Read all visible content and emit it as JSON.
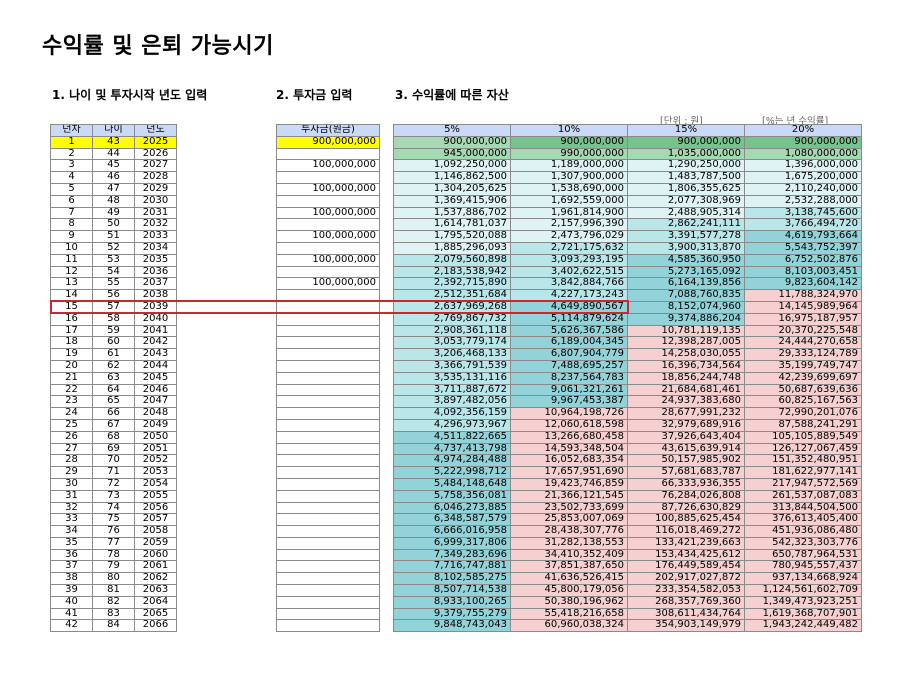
{
  "title": "수익률 및 은퇴 가능시기",
  "subtitles": [
    "1. 나이 및 투자시작 년도 입력",
    "2. 투자금 입력",
    "3. 수익률에 따른 자산"
  ],
  "notes": {
    "unit": "[단위 : 원]",
    "rate": "[%는 년 수익률]"
  },
  "left_headers": [
    "년차",
    "나이",
    "년도"
  ],
  "invest_header": "투자금(원금)",
  "rate_headers": [
    "5%",
    "10%",
    "15%",
    "20%"
  ],
  "colors": {
    "header": "#c9daf8",
    "highlight": "#ffff00",
    "green": "#76c48d",
    "teal": "#92d3d9",
    "pink": "#f6d0d0",
    "red_outline": "#c8282f"
  },
  "highlighted_row_year": "15",
  "rows": [
    {
      "n": "1",
      "age": "43",
      "year": "2025",
      "invest": "900,000,000",
      "v": [
        "900,000,000",
        "900,000,000",
        "900,000,000",
        "900,000,000"
      ]
    },
    {
      "n": "2",
      "age": "44",
      "year": "2026",
      "invest": "",
      "v": [
        "945,000,000",
        "990,000,000",
        "1,035,000,000",
        "1,080,000,000"
      ]
    },
    {
      "n": "3",
      "age": "45",
      "year": "2027",
      "invest": "100,000,000",
      "v": [
        "1,092,250,000",
        "1,189,000,000",
        "1,290,250,000",
        "1,396,000,000"
      ]
    },
    {
      "n": "4",
      "age": "46",
      "year": "2028",
      "invest": "",
      "v": [
        "1,146,862,500",
        "1,307,900,000",
        "1,483,787,500",
        "1,675,200,000"
      ]
    },
    {
      "n": "5",
      "age": "47",
      "year": "2029",
      "invest": "100,000,000",
      "v": [
        "1,304,205,625",
        "1,538,690,000",
        "1,806,355,625",
        "2,110,240,000"
      ]
    },
    {
      "n": "6",
      "age": "48",
      "year": "2030",
      "invest": "",
      "v": [
        "1,369,415,906",
        "1,692,559,000",
        "2,077,308,969",
        "2,532,288,000"
      ]
    },
    {
      "n": "7",
      "age": "49",
      "year": "2031",
      "invest": "100,000,000",
      "v": [
        "1,537,886,702",
        "1,961,814,900",
        "2,488,905,314",
        "3,138,745,600"
      ]
    },
    {
      "n": "8",
      "age": "50",
      "year": "2032",
      "invest": "",
      "v": [
        "1,614,781,037",
        "2,157,996,390",
        "2,862,241,111",
        "3,766,494,720"
      ]
    },
    {
      "n": "9",
      "age": "51",
      "year": "2033",
      "invest": "100,000,000",
      "v": [
        "1,795,520,088",
        "2,473,796,029",
        "3,391,577,278",
        "4,619,793,664"
      ]
    },
    {
      "n": "10",
      "age": "52",
      "year": "2034",
      "invest": "",
      "v": [
        "1,885,296,093",
        "2,721,175,632",
        "3,900,313,870",
        "5,543,752,397"
      ]
    },
    {
      "n": "11",
      "age": "53",
      "year": "2035",
      "invest": "100,000,000",
      "v": [
        "2,079,560,898",
        "3,093,293,195",
        "4,585,360,950",
        "6,752,502,876"
      ]
    },
    {
      "n": "12",
      "age": "54",
      "year": "2036",
      "invest": "",
      "v": [
        "2,183,538,942",
        "3,402,622,515",
        "5,273,165,092",
        "8,103,003,451"
      ]
    },
    {
      "n": "13",
      "age": "55",
      "year": "2037",
      "invest": "100,000,000",
      "v": [
        "2,392,715,890",
        "3,842,884,766",
        "6,164,139,856",
        "9,823,604,142"
      ]
    },
    {
      "n": "14",
      "age": "56",
      "year": "2038",
      "invest": "",
      "v": [
        "2,512,351,684",
        "4,227,173,243",
        "7,088,760,835",
        "11,788,324,970"
      ]
    },
    {
      "n": "15",
      "age": "57",
      "year": "2039",
      "invest": "",
      "v": [
        "2,637,969,268",
        "4,649,890,567",
        "8,152,074,960",
        "14,145,989,964"
      ]
    },
    {
      "n": "16",
      "age": "58",
      "year": "2040",
      "invest": "",
      "v": [
        "2,769,867,732",
        "5,114,879,624",
        "9,374,886,204",
        "16,975,187,957"
      ]
    },
    {
      "n": "17",
      "age": "59",
      "year": "2041",
      "invest": "",
      "v": [
        "2,908,361,118",
        "5,626,367,586",
        "10,781,119,135",
        "20,370,225,548"
      ]
    },
    {
      "n": "18",
      "age": "60",
      "year": "2042",
      "invest": "",
      "v": [
        "3,053,779,174",
        "6,189,004,345",
        "12,398,287,005",
        "24,444,270,658"
      ]
    },
    {
      "n": "19",
      "age": "61",
      "year": "2043",
      "invest": "",
      "v": [
        "3,206,468,133",
        "6,807,904,779",
        "14,258,030,055",
        "29,333,124,789"
      ]
    },
    {
      "n": "20",
      "age": "62",
      "year": "2044",
      "invest": "",
      "v": [
        "3,366,791,539",
        "7,488,695,257",
        "16,396,734,564",
        "35,199,749,747"
      ]
    },
    {
      "n": "21",
      "age": "63",
      "year": "2045",
      "invest": "",
      "v": [
        "3,535,131,116",
        "8,237,564,783",
        "18,856,244,748",
        "42,239,699,697"
      ]
    },
    {
      "n": "22",
      "age": "64",
      "year": "2046",
      "invest": "",
      "v": [
        "3,711,887,672",
        "9,061,321,261",
        "21,684,681,461",
        "50,687,639,636"
      ]
    },
    {
      "n": "23",
      "age": "65",
      "year": "2047",
      "invest": "",
      "v": [
        "3,897,482,056",
        "9,967,453,387",
        "24,937,383,680",
        "60,825,167,563"
      ]
    },
    {
      "n": "24",
      "age": "66",
      "year": "2048",
      "invest": "",
      "v": [
        "4,092,356,159",
        "10,964,198,726",
        "28,677,991,232",
        "72,990,201,076"
      ]
    },
    {
      "n": "25",
      "age": "67",
      "year": "2049",
      "invest": "",
      "v": [
        "4,296,973,967",
        "12,060,618,598",
        "32,979,689,916",
        "87,588,241,291"
      ]
    },
    {
      "n": "26",
      "age": "68",
      "year": "2050",
      "invest": "",
      "v": [
        "4,511,822,665",
        "13,266,680,458",
        "37,926,643,404",
        "105,105,889,549"
      ]
    },
    {
      "n": "27",
      "age": "69",
      "year": "2051",
      "invest": "",
      "v": [
        "4,737,413,798",
        "14,593,348,504",
        "43,615,639,914",
        "126,127,067,459"
      ]
    },
    {
      "n": "28",
      "age": "70",
      "year": "2052",
      "invest": "",
      "v": [
        "4,974,284,488",
        "16,052,683,354",
        "50,157,985,902",
        "151,352,480,951"
      ]
    },
    {
      "n": "29",
      "age": "71",
      "year": "2053",
      "invest": "",
      "v": [
        "5,222,998,712",
        "17,657,951,690",
        "57,681,683,787",
        "181,622,977,141"
      ]
    },
    {
      "n": "30",
      "age": "72",
      "year": "2054",
      "invest": "",
      "v": [
        "5,484,148,648",
        "19,423,746,859",
        "66,333,936,355",
        "217,947,572,569"
      ]
    },
    {
      "n": "31",
      "age": "73",
      "year": "2055",
      "invest": "",
      "v": [
        "5,758,356,081",
        "21,366,121,545",
        "76,284,026,808",
        "261,537,087,083"
      ]
    },
    {
      "n": "32",
      "age": "74",
      "year": "2056",
      "invest": "",
      "v": [
        "6,046,273,885",
        "23,502,733,699",
        "87,726,630,829",
        "313,844,504,500"
      ]
    },
    {
      "n": "33",
      "age": "75",
      "year": "2057",
      "invest": "",
      "v": [
        "6,348,587,579",
        "25,853,007,069",
        "100,885,625,454",
        "376,613,405,400"
      ]
    },
    {
      "n": "34",
      "age": "76",
      "year": "2058",
      "invest": "",
      "v": [
        "6,666,016,958",
        "28,438,307,776",
        "116,018,469,272",
        "451,936,086,480"
      ]
    },
    {
      "n": "35",
      "age": "77",
      "year": "2059",
      "invest": "",
      "v": [
        "6,999,317,806",
        "31,282,138,553",
        "133,421,239,663",
        "542,323,303,776"
      ]
    },
    {
      "n": "36",
      "age": "78",
      "year": "2060",
      "invest": "",
      "v": [
        "7,349,283,696",
        "34,410,352,409",
        "153,434,425,612",
        "650,787,964,531"
      ]
    },
    {
      "n": "37",
      "age": "79",
      "year": "2061",
      "invest": "",
      "v": [
        "7,716,747,881",
        "37,851,387,650",
        "176,449,589,454",
        "780,945,557,437"
      ]
    },
    {
      "n": "38",
      "age": "80",
      "year": "2062",
      "invest": "",
      "v": [
        "8,102,585,275",
        "41,636,526,415",
        "202,917,027,872",
        "937,134,668,924"
      ]
    },
    {
      "n": "39",
      "age": "81",
      "year": "2063",
      "invest": "",
      "v": [
        "8,507,714,538",
        "45,800,179,056",
        "233,354,582,053",
        "1,124,561,602,709"
      ]
    },
    {
      "n": "40",
      "age": "82",
      "year": "2064",
      "invest": "",
      "v": [
        "8,933,100,265",
        "50,380,196,962",
        "268,357,769,360",
        "1,349,473,923,251"
      ]
    },
    {
      "n": "41",
      "age": "83",
      "year": "2065",
      "invest": "",
      "v": [
        "9,379,755,279",
        "55,418,216,658",
        "308,611,434,764",
        "1,619,368,707,901"
      ]
    },
    {
      "n": "42",
      "age": "84",
      "year": "2066",
      "invest": "",
      "v": [
        "9,848,743,043",
        "60,960,038,324",
        "354,903,149,979",
        "1,943,242,449,482"
      ]
    }
  ]
}
